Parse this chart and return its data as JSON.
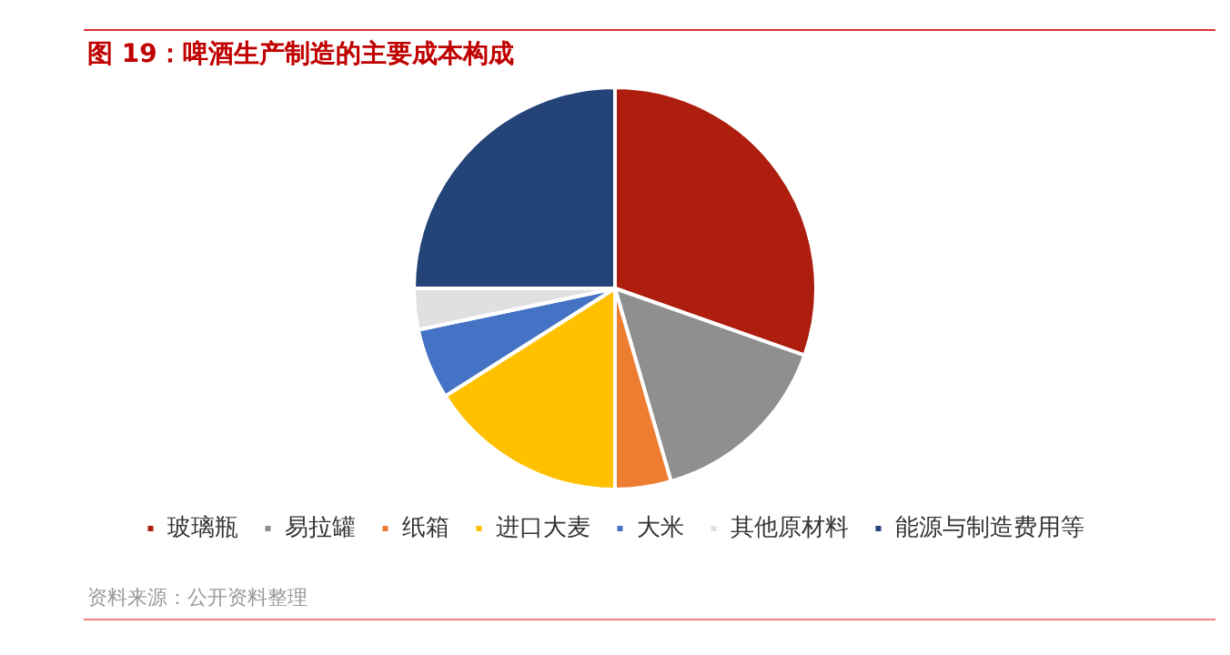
{
  "chart_data": {
    "type": "pie",
    "title": "图 19：啤酒生产制造的主要成本构成",
    "categories": [
      "玻璃瓶",
      "易拉罐",
      "纸箱",
      "进口大麦",
      "大米",
      "其他原材料",
      "能源与制造费用等"
    ],
    "values": [
      30.4,
      15.1,
      4.5,
      16,
      5.7,
      3.3,
      25
    ],
    "colors": [
      "#ae1e0f",
      "#8f8f8f",
      "#ed7d31",
      "#ffc000",
      "#4472c4",
      "#e0e0e0",
      "#244478"
    ],
    "legend": "bottom",
    "annotations": [
      "资料来源：公开资料整理"
    ]
  }
}
